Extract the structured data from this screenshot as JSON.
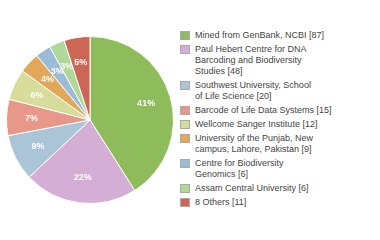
{
  "chart_data": {
    "type": "pie",
    "categories": [
      "Mined from GenBank, NCBI [87]",
      "Paul Hebert Centre for DNA\nBarcoding and Biodiversity\nStudies [48]",
      "Southwest University, School\nof Life Science [20]",
      "Barcode of Life Data Systems [15]",
      "Wellcome Sanger Institute [12]",
      "University of the Punjab, New\ncampus, Lahore, Pakistan [9]",
      "Centre for Biodiversity\nGenomics [6]",
      "Assam Central University [6]",
      "8 Others [11]"
    ],
    "values": [
      41,
      22,
      9,
      7,
      6,
      4,
      3,
      3,
      5
    ],
    "value_labels": [
      "41%",
      "22%",
      "9%",
      "7%",
      "6%",
      "4%",
      "3%",
      "3%",
      "5%"
    ],
    "colors": [
      "#8fbc5a",
      "#d4aed4",
      "#aac4d8",
      "#e89888",
      "#d8dc9a",
      "#e0a858",
      "#9abcd8",
      "#b0d898",
      "#cc6655"
    ],
    "data_labels": true,
    "legend": "right"
  }
}
